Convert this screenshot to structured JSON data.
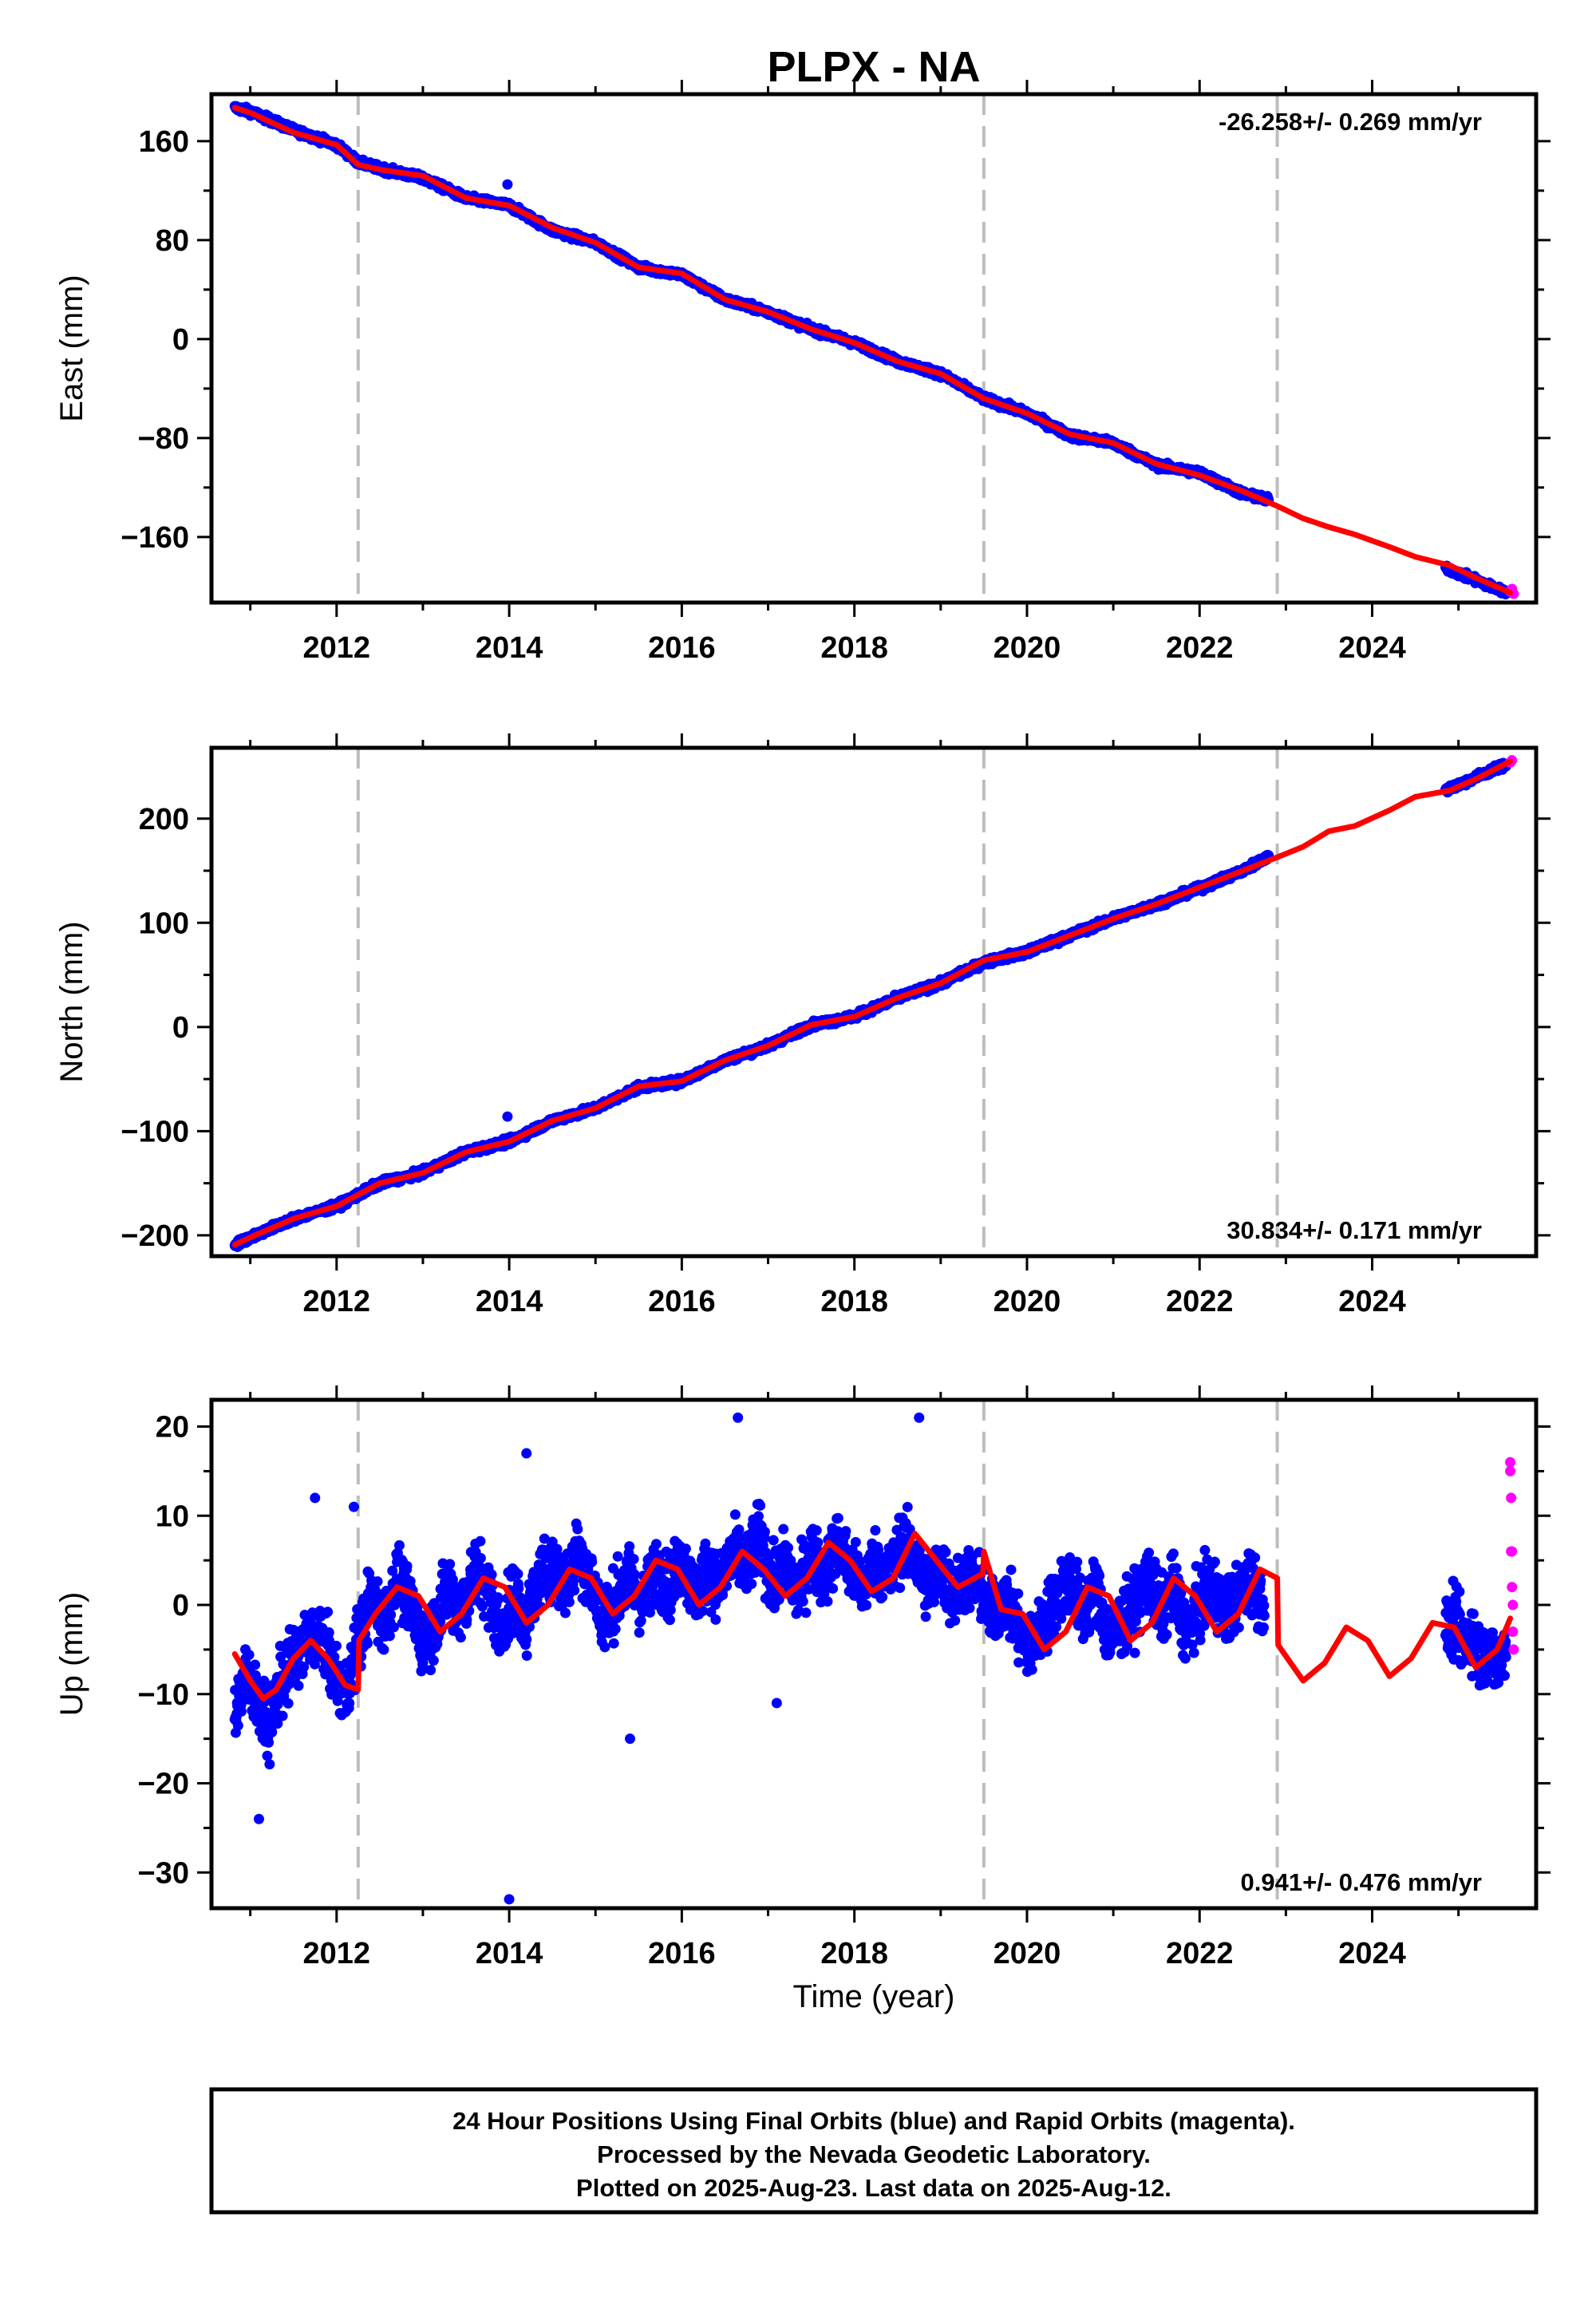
{
  "title": "PLPX - NA",
  "xlabel": "Time (year)",
  "colors": {
    "final_orbits": "#0000ff",
    "rapid_orbits": "#ff00ff",
    "model": "#ff0000",
    "break_lines": "#bdbdbd"
  },
  "footer": {
    "line1": "24 Hour Positions Using Final Orbits (blue) and Rapid Orbits (magenta).",
    "line2": "Processed by the Nevada Geodetic Laboratory.",
    "line3": "Plotted on 2025-Aug-23. Last data on 2025-Aug-12."
  },
  "chart_data": [
    {
      "type": "scatter",
      "ylabel": "East (mm)",
      "rate": "-26.258+/- 0.269 mm/yr",
      "rate_position": "top-right",
      "xlim": [
        2010.55,
        2025.9
      ],
      "ylim": [
        -213,
        198
      ],
      "xticks": [
        2012,
        2014,
        2016,
        2018,
        2020,
        2022,
        2024
      ],
      "yticks": [
        160,
        80,
        0,
        -80,
        -160
      ],
      "break_lines": [
        2012.25,
        2019.5,
        2022.9
      ],
      "series": [
        {
          "name": "Final Orbits",
          "color": "#0000ff",
          "x": [
            2010.82,
            2011.0,
            2011.5,
            2012.0,
            2012.25,
            2012.5,
            2013.0,
            2013.5,
            2014.0,
            2014.5,
            2015.0,
            2015.5,
            2016.0,
            2016.5,
            2017.0,
            2017.5,
            2018.0,
            2018.5,
            2019.0,
            2019.5,
            2020.0,
            2020.5,
            2021.0,
            2021.5,
            2022.0,
            2022.5,
            2022.8,
            2024.85,
            2025.2,
            2025.55
          ],
          "y": [
            187,
            184,
            169,
            157,
            143,
            138,
            130,
            114,
            108,
            88,
            78,
            58,
            52,
            32,
            22,
            8,
            -3,
            -18,
            -28,
            -48,
            -60,
            -78,
            -84,
            -102,
            -108,
            -125,
            -130,
            -185,
            -195,
            -205
          ]
        },
        {
          "name": "Rapid Orbits",
          "color": "#ff00ff",
          "x": [
            2025.6,
            2025.62,
            2025.64
          ],
          "y": [
            -204,
            -202,
            -206
          ]
        },
        {
          "name": "Model",
          "color": "#ff0000",
          "style": "line",
          "x": [
            2010.82,
            2011.0,
            2011.5,
            2012.0,
            2012.25,
            2012.5,
            2013.0,
            2013.5,
            2014.0,
            2014.5,
            2015.0,
            2015.5,
            2016.0,
            2016.5,
            2017.0,
            2017.5,
            2018.0,
            2018.5,
            2019.0,
            2019.5,
            2020.0,
            2020.5,
            2021.0,
            2021.5,
            2022.0,
            2022.5,
            2022.9,
            2023.2,
            2023.5,
            2023.8,
            2024.2,
            2024.5,
            2024.9,
            2025.2,
            2025.6
          ],
          "y": [
            187,
            183,
            167,
            157,
            141,
            137,
            132,
            114,
            108,
            90,
            78,
            58,
            53,
            32,
            22,
            8,
            -3,
            -18,
            -28,
            -48,
            -60,
            -77,
            -84,
            -101,
            -110,
            -123,
            -135,
            -145,
            -152,
            -158,
            -168,
            -176,
            -183,
            -193,
            -205
          ]
        },
        {
          "name": "Outliers",
          "color": "#0000ff",
          "x": [
            2013.98
          ],
          "y": [
            125
          ]
        }
      ]
    },
    {
      "type": "scatter",
      "ylabel": "North (mm)",
      "rate": "30.834+/- 0.171 mm/yr",
      "rate_position": "bottom-right",
      "xlim": [
        2010.55,
        2025.9
      ],
      "ylim": [
        -220,
        268
      ],
      "xticks": [
        2012,
        2014,
        2016,
        2018,
        2020,
        2022,
        2024
      ],
      "yticks": [
        200,
        100,
        0,
        -100,
        -200
      ],
      "break_lines": [
        2012.25,
        2019.5,
        2022.9
      ],
      "series": [
        {
          "name": "Final Orbits",
          "color": "#0000ff",
          "x": [
            2010.82,
            2011.0,
            2011.5,
            2012.0,
            2012.5,
            2013.0,
            2013.5,
            2014.0,
            2014.5,
            2015.0,
            2015.5,
            2016.0,
            2016.5,
            2017.0,
            2017.5,
            2018.0,
            2018.5,
            2019.0,
            2019.5,
            2020.0,
            2020.5,
            2021.0,
            2021.5,
            2022.0,
            2022.5,
            2022.8,
            2024.85,
            2025.2,
            2025.55
          ],
          "y": [
            -209,
            -202,
            -184,
            -172,
            -150,
            -140,
            -120,
            -110,
            -90,
            -78,
            -58,
            -52,
            -32,
            -18,
            2,
            10,
            28,
            42,
            62,
            72,
            88,
            104,
            118,
            133,
            150,
            164,
            227,
            240,
            252
          ]
        },
        {
          "name": "Rapid Orbits",
          "color": "#ff00ff",
          "x": [
            2025.6,
            2025.62
          ],
          "y": [
            254,
            256
          ]
        },
        {
          "name": "Model",
          "color": "#ff0000",
          "style": "line",
          "x": [
            2010.82,
            2011.0,
            2011.5,
            2012.0,
            2012.5,
            2013.0,
            2013.5,
            2014.0,
            2014.5,
            2015.0,
            2015.5,
            2016.0,
            2016.5,
            2017.0,
            2017.5,
            2018.0,
            2018.5,
            2019.0,
            2019.5,
            2020.0,
            2020.5,
            2021.0,
            2021.5,
            2022.0,
            2022.5,
            2022.9,
            2023.2,
            2023.5,
            2023.8,
            2024.2,
            2024.5,
            2024.9,
            2025.2,
            2025.6
          ],
          "y": [
            -209,
            -202,
            -184,
            -172,
            -150,
            -140,
            -120,
            -110,
            -90,
            -78,
            -57,
            -52,
            -32,
            -18,
            2,
            10,
            28,
            42,
            64,
            72,
            88,
            104,
            118,
            134,
            150,
            163,
            173,
            188,
            193,
            208,
            221,
            227,
            238,
            255
          ]
        },
        {
          "name": "Outliers",
          "color": "#0000ff",
          "x": [
            2013.98
          ],
          "y": [
            -86
          ]
        }
      ]
    },
    {
      "type": "scatter",
      "ylabel": "Up (mm)",
      "rate": "0.941+/- 0.476 mm/yr",
      "rate_position": "bottom-right",
      "xlim": [
        2010.55,
        2025.9
      ],
      "ylim": [
        -34,
        23
      ],
      "xticks": [
        2012,
        2014,
        2016,
        2018,
        2020,
        2022,
        2024
      ],
      "yticks": [
        20,
        10,
        0,
        -10,
        -20,
        -30
      ],
      "break_lines": [
        2012.25,
        2019.5,
        2022.9
      ],
      "series": [
        {
          "name": "Final Orbits",
          "color": "#0000ff",
          "x": [
            2010.82,
            2010.95,
            2011.1,
            2011.2,
            2011.35,
            2011.5,
            2011.65,
            2011.8,
            2011.95,
            2012.1,
            2012.25,
            2012.4,
            2012.55,
            2012.7,
            2012.85,
            2013.0,
            2013.15,
            2013.3,
            2013.45,
            2013.6,
            2013.75,
            2013.9,
            2014.05,
            2014.2,
            2014.35,
            2014.5,
            2014.65,
            2014.8,
            2014.95,
            2015.1,
            2015.25,
            2015.4,
            2015.55,
            2015.7,
            2015.85,
            2016.0,
            2016.15,
            2016.3,
            2016.45,
            2016.6,
            2016.75,
            2016.9,
            2017.05,
            2017.2,
            2017.35,
            2017.5,
            2017.65,
            2017.8,
            2017.95,
            2018.1,
            2018.25,
            2018.4,
            2018.55,
            2018.7,
            2018.85,
            2019.0,
            2019.15,
            2019.3,
            2019.45,
            2019.6,
            2019.75,
            2019.9,
            2020.05,
            2020.2,
            2020.35,
            2020.5,
            2020.65,
            2020.8,
            2020.95,
            2021.1,
            2021.25,
            2021.4,
            2021.55,
            2021.7,
            2021.85,
            2022.0,
            2022.15,
            2022.3,
            2022.45,
            2022.6,
            2022.75,
            2024.85,
            2024.95,
            2025.05,
            2025.15,
            2025.25,
            2025.35,
            2025.45,
            2025.55
          ],
          "y": [
            -12,
            -8,
            -11,
            -14,
            -9,
            -6,
            -4,
            -3,
            -7,
            -10,
            -4,
            1,
            -2,
            3,
            0,
            -4,
            -2,
            2,
            -1,
            4,
            2,
            -3,
            1,
            -2,
            3,
            5,
            2,
            6,
            3,
            -2,
            1,
            3,
            0,
            4,
            2,
            5,
            1,
            4,
            2,
            6,
            4,
            8,
            2,
            5,
            1,
            6,
            3,
            7,
            4,
            2,
            5,
            3,
            7,
            5,
            2,
            4,
            1,
            3,
            2,
            -1,
            1,
            -3,
            -5,
            -2,
            1,
            3,
            -1,
            2,
            -4,
            -2,
            0,
            3,
            -1,
            2,
            -3,
            0,
            2,
            -1,
            1,
            3,
            0,
            -3,
            -2,
            -4,
            -3,
            -6,
            -5,
            -7,
            -4
          ]
        },
        {
          "name": "Rapid Orbits",
          "color": "#ff00ff",
          "x": [
            2025.6,
            2025.6,
            2025.61,
            2025.61,
            2025.62,
            2025.62,
            2025.63,
            2025.63,
            2025.64
          ],
          "y": [
            16,
            15,
            12,
            6,
            6,
            2,
            0,
            -3,
            -5
          ]
        },
        {
          "name": "Model",
          "color": "#ff0000",
          "style": "line",
          "x": [
            2010.82,
            2011.0,
            2011.15,
            2011.3,
            2011.5,
            2011.7,
            2011.9,
            2012.1,
            2012.25,
            2012.26,
            2012.45,
            2012.7,
            2012.95,
            2013.2,
            2013.45,
            2013.7,
            2013.95,
            2014.2,
            2014.45,
            2014.7,
            2014.95,
            2015.2,
            2015.45,
            2015.7,
            2015.95,
            2016.2,
            2016.45,
            2016.7,
            2016.95,
            2017.2,
            2017.45,
            2017.7,
            2017.95,
            2018.2,
            2018.45,
            2018.7,
            2018.95,
            2019.2,
            2019.49,
            2019.5,
            2019.7,
            2019.95,
            2020.2,
            2020.45,
            2020.7,
            2020.95,
            2021.2,
            2021.45,
            2021.7,
            2021.95,
            2022.2,
            2022.45,
            2022.7,
            2022.9,
            2022.91,
            2023.2,
            2023.45,
            2023.7,
            2023.95,
            2024.2,
            2024.45,
            2024.7,
            2024.95,
            2025.2,
            2025.45,
            2025.6
          ],
          "y": [
            -5.5,
            -8.5,
            -10.5,
            -9.5,
            -6,
            -4,
            -6,
            -9,
            -9.5,
            -4,
            -1,
            2,
            1,
            -3,
            -1,
            3,
            2,
            -2,
            0,
            4,
            3,
            -1,
            1,
            5,
            4,
            0,
            2,
            6,
            4,
            1,
            3,
            7,
            5,
            1.5,
            3,
            8,
            5,
            2,
            3.5,
            6,
            -0.5,
            -1,
            -5,
            -3,
            2,
            1,
            -4,
            -2,
            3,
            1,
            -3,
            -1,
            4,
            3,
            -4.5,
            -8.5,
            -6.5,
            -2.5,
            -4,
            -8,
            -6,
            -2,
            -2.5,
            -7,
            -5,
            -1.5
          ]
        },
        {
          "name": "Outliers",
          "color": "#0000ff",
          "x": [
            2011.1,
            2011.75,
            2012.2,
            2014.0,
            2014.2,
            2015.4,
            2016.65,
            2017.1,
            2018.75
          ],
          "y": [
            -24,
            12,
            11,
            -33,
            17,
            -15,
            21,
            -11,
            21
          ]
        }
      ]
    }
  ]
}
